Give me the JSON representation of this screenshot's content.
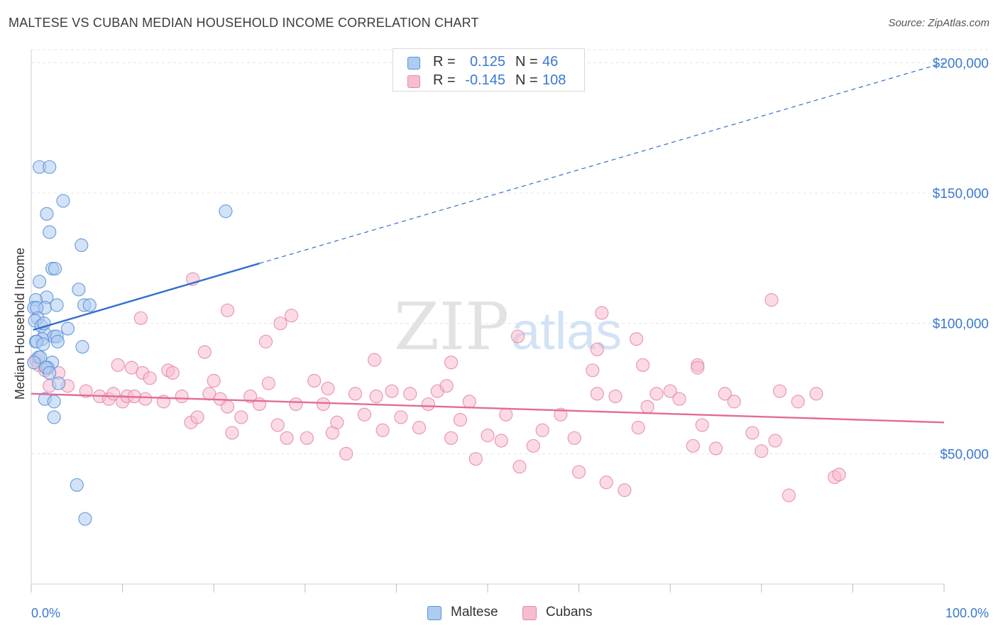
{
  "title": "MALTESE VS CUBAN MEDIAN HOUSEHOLD INCOME CORRELATION CHART",
  "source": "Source: ZipAtlas.com",
  "watermark": {
    "zip": "ZIP",
    "atlas": "atlas"
  },
  "legend_top": [
    {
      "r_label": "R =",
      "r_value": "0.125",
      "n_label": "N =",
      "n_value": "46"
    },
    {
      "r_label": "R =",
      "r_value": "-0.145",
      "n_label": "N =",
      "n_value": "108"
    }
  ],
  "legend_bottom": {
    "maltese": "Maltese",
    "cubans": "Cubans"
  },
  "colors": {
    "maltese_fill": "#aecbf0",
    "maltese_stroke": "#5b93d6",
    "maltese_line": "#2f6fcf",
    "cubans_fill": "#f7bcd0",
    "cubans_stroke": "#e58aa8",
    "cubans_line": "#e36b98",
    "axis_label": "#3a78d0",
    "grid": "#e4e4e4"
  },
  "chart_data": {
    "type": "scatter",
    "title": "MALTESE VS CUBAN MEDIAN HOUSEHOLD INCOME CORRELATION CHART",
    "xlabel": "",
    "ylabel": "Median Household Income",
    "xlim": [
      0,
      100
    ],
    "ylim": [
      0,
      205000
    ],
    "x_tick_labels": {
      "left": "0.0%",
      "right": "100.0%"
    },
    "y_ticks": [
      {
        "value": 50000,
        "label": "$50,000"
      },
      {
        "value": 100000,
        "label": "$100,000"
      },
      {
        "value": 150000,
        "label": "$150,000"
      },
      {
        "value": 200000,
        "label": "$200,000"
      }
    ],
    "series": [
      {
        "name": "Maltese",
        "R": 0.125,
        "N": 46,
        "trend": {
          "x0": 0.2,
          "y0": 97500,
          "x1": 25,
          "y1": 123000,
          "dashed_to_x": 100,
          "dashed_to_y": 200000
        },
        "points": [
          [
            0.9,
            160000
          ],
          [
            2.0,
            160000
          ],
          [
            3.5,
            147000
          ],
          [
            1.7,
            142000
          ],
          [
            2.0,
            135000
          ],
          [
            5.5,
            130000
          ],
          [
            2.3,
            121000
          ],
          [
            2.6,
            121000
          ],
          [
            0.9,
            116000
          ],
          [
            5.2,
            113000
          ],
          [
            1.7,
            110000
          ],
          [
            0.5,
            109000
          ],
          [
            2.8,
            107000
          ],
          [
            5.8,
            107000
          ],
          [
            6.4,
            107000
          ],
          [
            0.3,
            106000
          ],
          [
            1.5,
            106000
          ],
          [
            0.6,
            106000
          ],
          [
            0.7,
            102000
          ],
          [
            0.4,
            101000
          ],
          [
            1.1,
            99000
          ],
          [
            4.0,
            98000
          ],
          [
            1.5,
            96000
          ],
          [
            2.5,
            95000
          ],
          [
            2.8,
            95000
          ],
          [
            1.2,
            94000
          ],
          [
            0.5,
            93000
          ],
          [
            2.9,
            93000
          ],
          [
            0.6,
            93000
          ],
          [
            1.3,
            92000
          ],
          [
            5.6,
            91000
          ],
          [
            0.8,
            87000
          ],
          [
            1.0,
            87000
          ],
          [
            2.3,
            85000
          ],
          [
            0.3,
            85000
          ],
          [
            1.8,
            83000
          ],
          [
            1.6,
            83000
          ],
          [
            2.0,
            81000
          ],
          [
            3.0,
            77000
          ],
          [
            1.5,
            71000
          ],
          [
            2.5,
            70000
          ],
          [
            2.5,
            64000
          ],
          [
            5.0,
            38000
          ],
          [
            5.9,
            25000
          ],
          [
            21.3,
            143000
          ],
          [
            1.4,
            100000
          ]
        ]
      },
      {
        "name": "Cubans",
        "R": -0.145,
        "N": 108,
        "trend": {
          "x0": 0,
          "y0": 73000,
          "x1": 100,
          "y1": 62000
        },
        "points": [
          [
            17.7,
            117000
          ],
          [
            62.5,
            104000
          ],
          [
            21.5,
            105000
          ],
          [
            28.5,
            103000
          ],
          [
            12.0,
            102000
          ],
          [
            27.3,
            100000
          ],
          [
            81.1,
            109000
          ],
          [
            53.3,
            95000
          ],
          [
            66.3,
            94000
          ],
          [
            25.7,
            93000
          ],
          [
            62.0,
            90000
          ],
          [
            19.0,
            89000
          ],
          [
            37.6,
            86000
          ],
          [
            46.0,
            85000
          ],
          [
            73.0,
            84000
          ],
          [
            67.0,
            84000
          ],
          [
            61.5,
            82000
          ],
          [
            9.5,
            84000
          ],
          [
            11.0,
            83000
          ],
          [
            73.0,
            83000
          ],
          [
            15.0,
            82000
          ],
          [
            12.2,
            81000
          ],
          [
            0.5,
            86000
          ],
          [
            0.8,
            84000
          ],
          [
            1.5,
            82000
          ],
          [
            3.0,
            81000
          ],
          [
            2.0,
            76000
          ],
          [
            4.0,
            76000
          ],
          [
            6.0,
            74000
          ],
          [
            7.5,
            72000
          ],
          [
            8.5,
            71000
          ],
          [
            9.0,
            73000
          ],
          [
            10.0,
            70000
          ],
          [
            10.5,
            72000
          ],
          [
            11.3,
            72000
          ],
          [
            12.5,
            71000
          ],
          [
            13.0,
            79000
          ],
          [
            14.5,
            70000
          ],
          [
            15.5,
            81000
          ],
          [
            16.5,
            72000
          ],
          [
            17.5,
            62000
          ],
          [
            18.2,
            64000
          ],
          [
            19.5,
            73000
          ],
          [
            20.0,
            78000
          ],
          [
            20.7,
            71000
          ],
          [
            21.5,
            68000
          ],
          [
            22.0,
            58000
          ],
          [
            23.0,
            64000
          ],
          [
            24.0,
            72000
          ],
          [
            25.0,
            69000
          ],
          [
            26.0,
            77000
          ],
          [
            27.0,
            61000
          ],
          [
            28.0,
            56000
          ],
          [
            29.0,
            69000
          ],
          [
            30.2,
            56000
          ],
          [
            31.0,
            78000
          ],
          [
            32.0,
            69000
          ],
          [
            32.5,
            75000
          ],
          [
            33.0,
            58000
          ],
          [
            33.5,
            62000
          ],
          [
            34.5,
            50000
          ],
          [
            35.5,
            73000
          ],
          [
            36.5,
            65000
          ],
          [
            37.8,
            72000
          ],
          [
            38.5,
            59000
          ],
          [
            39.5,
            74000
          ],
          [
            40.5,
            64000
          ],
          [
            41.5,
            73000
          ],
          [
            42.5,
            60000
          ],
          [
            43.5,
            69000
          ],
          [
            44.5,
            74000
          ],
          [
            45.5,
            76000
          ],
          [
            46.0,
            56000
          ],
          [
            47.0,
            63000
          ],
          [
            48.0,
            70000
          ],
          [
            48.7,
            48000
          ],
          [
            50.0,
            57000
          ],
          [
            51.5,
            55000
          ],
          [
            52.0,
            65000
          ],
          [
            53.5,
            45000
          ],
          [
            55.0,
            53000
          ],
          [
            56.0,
            59000
          ],
          [
            58.0,
            65000
          ],
          [
            59.5,
            56000
          ],
          [
            60.0,
            43000
          ],
          [
            62.0,
            73000
          ],
          [
            63.0,
            39000
          ],
          [
            64.0,
            72000
          ],
          [
            65.0,
            36000
          ],
          [
            66.5,
            60000
          ],
          [
            67.5,
            68000
          ],
          [
            68.5,
            73000
          ],
          [
            70.0,
            74000
          ],
          [
            71.0,
            71000
          ],
          [
            72.5,
            53000
          ],
          [
            73.5,
            61000
          ],
          [
            75.0,
            52000
          ],
          [
            76.0,
            73000
          ],
          [
            77.0,
            70000
          ],
          [
            79.0,
            58000
          ],
          [
            80.0,
            51000
          ],
          [
            82.0,
            74000
          ],
          [
            84.0,
            70000
          ],
          [
            86.0,
            73000
          ],
          [
            81.5,
            55000
          ],
          [
            83.0,
            34000
          ],
          [
            88.0,
            41000
          ],
          [
            88.5,
            42000
          ]
        ]
      }
    ]
  }
}
